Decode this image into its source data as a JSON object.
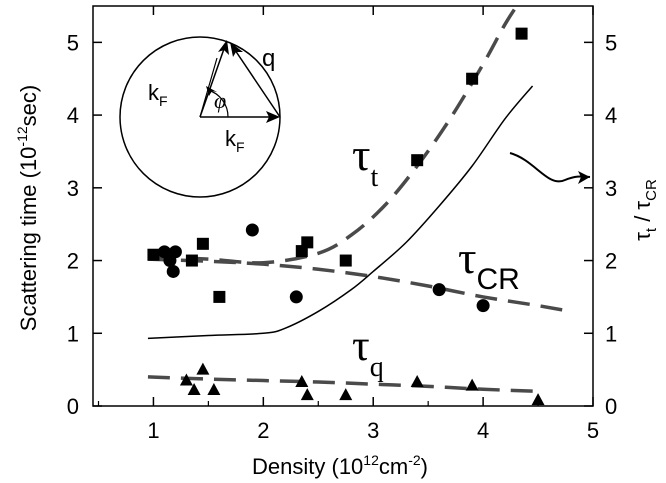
{
  "chart_data": {
    "type": "scatter",
    "xlabel": "Density (10",
    "xlabel_sup": "12",
    "xlabel_mid": "cm",
    "xlabel_sup2": "-2",
    "xlabel_end": ")",
    "ylabel": "Scattering time (10",
    "ylabel_sup": "-12",
    "ylabel_end": "sec)",
    "y2label_tau1": "τ",
    "y2label_sub1": "t",
    "y2label_slash": " / ",
    "y2label_tau2": "τ",
    "y2label_sub2": "CR",
    "xlim": [
      0.45,
      5.0
    ],
    "ylim": [
      0,
      5.5
    ],
    "y2lim": [
      0,
      5.5
    ],
    "x_ticks": [
      1,
      2,
      3,
      4,
      5
    ],
    "y_ticks": [
      0,
      1,
      2,
      3,
      4,
      5
    ],
    "y2_ticks": [
      0,
      1,
      2,
      3,
      4,
      5
    ],
    "labels": {
      "tau_t": {
        "text": "τ",
        "sub": "t"
      },
      "tau_cr": {
        "text": "τ",
        "sub": "CR"
      },
      "tau_q": {
        "text": "τ",
        "sub": "q"
      }
    },
    "inset": {
      "k_f_top": "k",
      "k_f_top_sub": "F",
      "k_f_bottom": "k",
      "k_f_bottom_sub": "F",
      "q": "q",
      "phi": "φ"
    },
    "series": [
      {
        "marker": "square",
        "points": [
          [
            1.0,
            2.08
          ],
          [
            1.35,
            2.0
          ],
          [
            1.45,
            2.23
          ],
          [
            1.6,
            1.5
          ],
          [
            2.35,
            2.13
          ],
          [
            2.4,
            2.25
          ],
          [
            2.75,
            2.0
          ],
          [
            3.4,
            3.38
          ],
          [
            3.9,
            4.5
          ],
          [
            4.35,
            5.12
          ]
        ]
      },
      {
        "marker": "circle",
        "points": [
          [
            1.1,
            2.12
          ],
          [
            1.15,
            2.0
          ],
          [
            1.18,
            1.85
          ],
          [
            1.2,
            2.12
          ],
          [
            1.9,
            2.42
          ],
          [
            2.3,
            1.5
          ],
          [
            3.6,
            1.6
          ],
          [
            4.0,
            1.38
          ]
        ]
      },
      {
        "marker": "triangle",
        "points": [
          [
            1.3,
            0.35
          ],
          [
            1.37,
            0.22
          ],
          [
            1.45,
            0.5
          ],
          [
            1.55,
            0.22
          ],
          [
            2.35,
            0.33
          ],
          [
            2.4,
            0.15
          ],
          [
            2.75,
            0.15
          ],
          [
            3.4,
            0.33
          ],
          [
            3.9,
            0.28
          ],
          [
            4.5,
            0.08
          ]
        ]
      },
      {
        "style": "dashed-fit",
        "name_ref": "tau_t",
        "x": [
          1.0,
          1.5,
          2.0,
          2.5,
          2.8,
          3.1,
          3.4,
          3.7,
          4.0,
          4.2,
          4.35
        ],
        "y": [
          2.05,
          2.02,
          1.97,
          2.1,
          2.35,
          2.75,
          3.3,
          3.95,
          4.7,
          5.25,
          5.6
        ]
      },
      {
        "style": "dashed-fit",
        "name_ref": "tau_cr",
        "x": [
          0.95,
          1.5,
          2.0,
          2.5,
          3.0,
          3.5,
          4.0,
          4.5,
          4.8
        ],
        "y": [
          2.02,
          1.99,
          1.95,
          1.88,
          1.78,
          1.65,
          1.5,
          1.38,
          1.3
        ]
      },
      {
        "style": "dashed-fit",
        "name_ref": "tau_q",
        "x": [
          0.95,
          1.5,
          2.0,
          2.5,
          3.0,
          3.5,
          4.0,
          4.55
        ],
        "y": [
          0.4,
          0.37,
          0.35,
          0.33,
          0.3,
          0.27,
          0.23,
          0.2
        ]
      },
      {
        "style": "solid",
        "axis": "right",
        "name_ref": "ratio",
        "x": [
          0.95,
          1.5,
          2.0,
          2.2,
          2.5,
          2.8,
          3.0,
          3.3,
          3.6,
          3.9,
          4.2,
          4.45
        ],
        "y": [
          0.93,
          0.97,
          1.0,
          1.07,
          1.3,
          1.6,
          1.85,
          2.25,
          2.75,
          3.3,
          3.95,
          4.4
        ]
      }
    ]
  }
}
